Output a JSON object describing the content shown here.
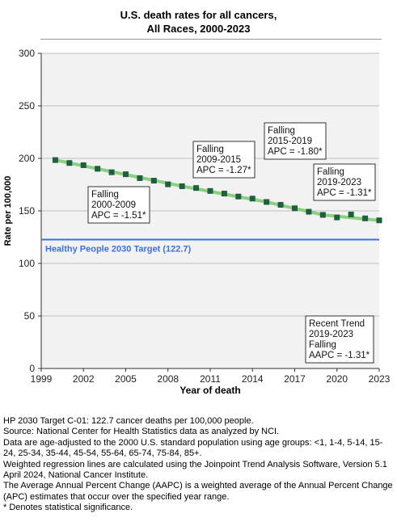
{
  "chart_data": {
    "type": "line",
    "title": "U.S. death rates for all cancers,",
    "subtitle": "All Races,  2000-2023",
    "xlabel": "Year of death",
    "ylabel": "Rate per 100,000",
    "xlim": [
      1999,
      2023
    ],
    "ylim": [
      0,
      300
    ],
    "x_ticks": [
      1999,
      2002,
      2005,
      2008,
      2011,
      2014,
      2017,
      2020,
      2023
    ],
    "y_ticks": [
      0,
      50,
      100,
      150,
      200,
      250,
      300
    ],
    "grid": true,
    "series": [
      {
        "x": [
          2000,
          2001,
          2002,
          2003,
          2004,
          2005,
          2006,
          2007,
          2008,
          2009,
          2010,
          2011,
          2012,
          2013,
          2014,
          2015,
          2016,
          2017,
          2018,
          2019,
          2020,
          2021,
          2022,
          2023
        ],
        "values": [
          198.4,
          195.6,
          193.5,
          190.1,
          186.8,
          184.9,
          181.2,
          178.8,
          175.3,
          173.5,
          171.8,
          169.0,
          166.5,
          163.7,
          161.7,
          158.5,
          155.8,
          152.5,
          149.2,
          146.2,
          143.8,
          146.6,
          142.9,
          141.0
        ],
        "color": "#1e5f3f"
      }
    ],
    "trend_segments": [
      {
        "x": [
          2000,
          2009
        ],
        "color": "#8ccf7e"
      },
      {
        "x": [
          2009,
          2015
        ],
        "color": "#8ccf7e"
      },
      {
        "x": [
          2015,
          2019
        ],
        "color": "#8ccf7e"
      },
      {
        "x": [
          2019,
          2023
        ],
        "color": "#8ccf7e"
      }
    ],
    "target": {
      "value": 122.7,
      "label": "Healthy People 2030 Target (122.7)",
      "color": "#3d6fe0"
    },
    "annotations": [
      {
        "lines": [
          "Falling",
          "2000-2009",
          "APC = -1.51*"
        ]
      },
      {
        "lines": [
          "Falling",
          "2009-2015",
          "APC = -1.27*"
        ]
      },
      {
        "lines": [
          "Falling",
          "2015-2019",
          "APC = -1.80*"
        ]
      },
      {
        "lines": [
          "Falling",
          "2019-2023",
          "APC = -1.31*"
        ]
      },
      {
        "lines": [
          "Recent Trend",
          "2019-2023",
          "Falling",
          "AAPC = -1.31*"
        ]
      }
    ]
  },
  "footnotes": [
    "HP 2030 Target C-01: 122.7 cancer deaths per 100,000 people.",
    "Source: National Center for Health Statistics data as analyzed by NCI.",
    "Data are age-adjusted to the 2000 U.S. standard population using age groups: <1, 1-4, 5-14, 15-24, 25-34, 35-44, 45-54, 55-64, 65-74, 75-84, 85+.",
    "Weighted regression lines are calculated using the Joinpoint Trend Analysis Software, Version 5.1 April 2024, National Cancer Institute.",
    "The Average Annual Percent Change (AAPC) is a weighted average of the Annual Percent Change (APC) estimates that occur over the specified year range.",
    "* Denotes statistical significance."
  ]
}
